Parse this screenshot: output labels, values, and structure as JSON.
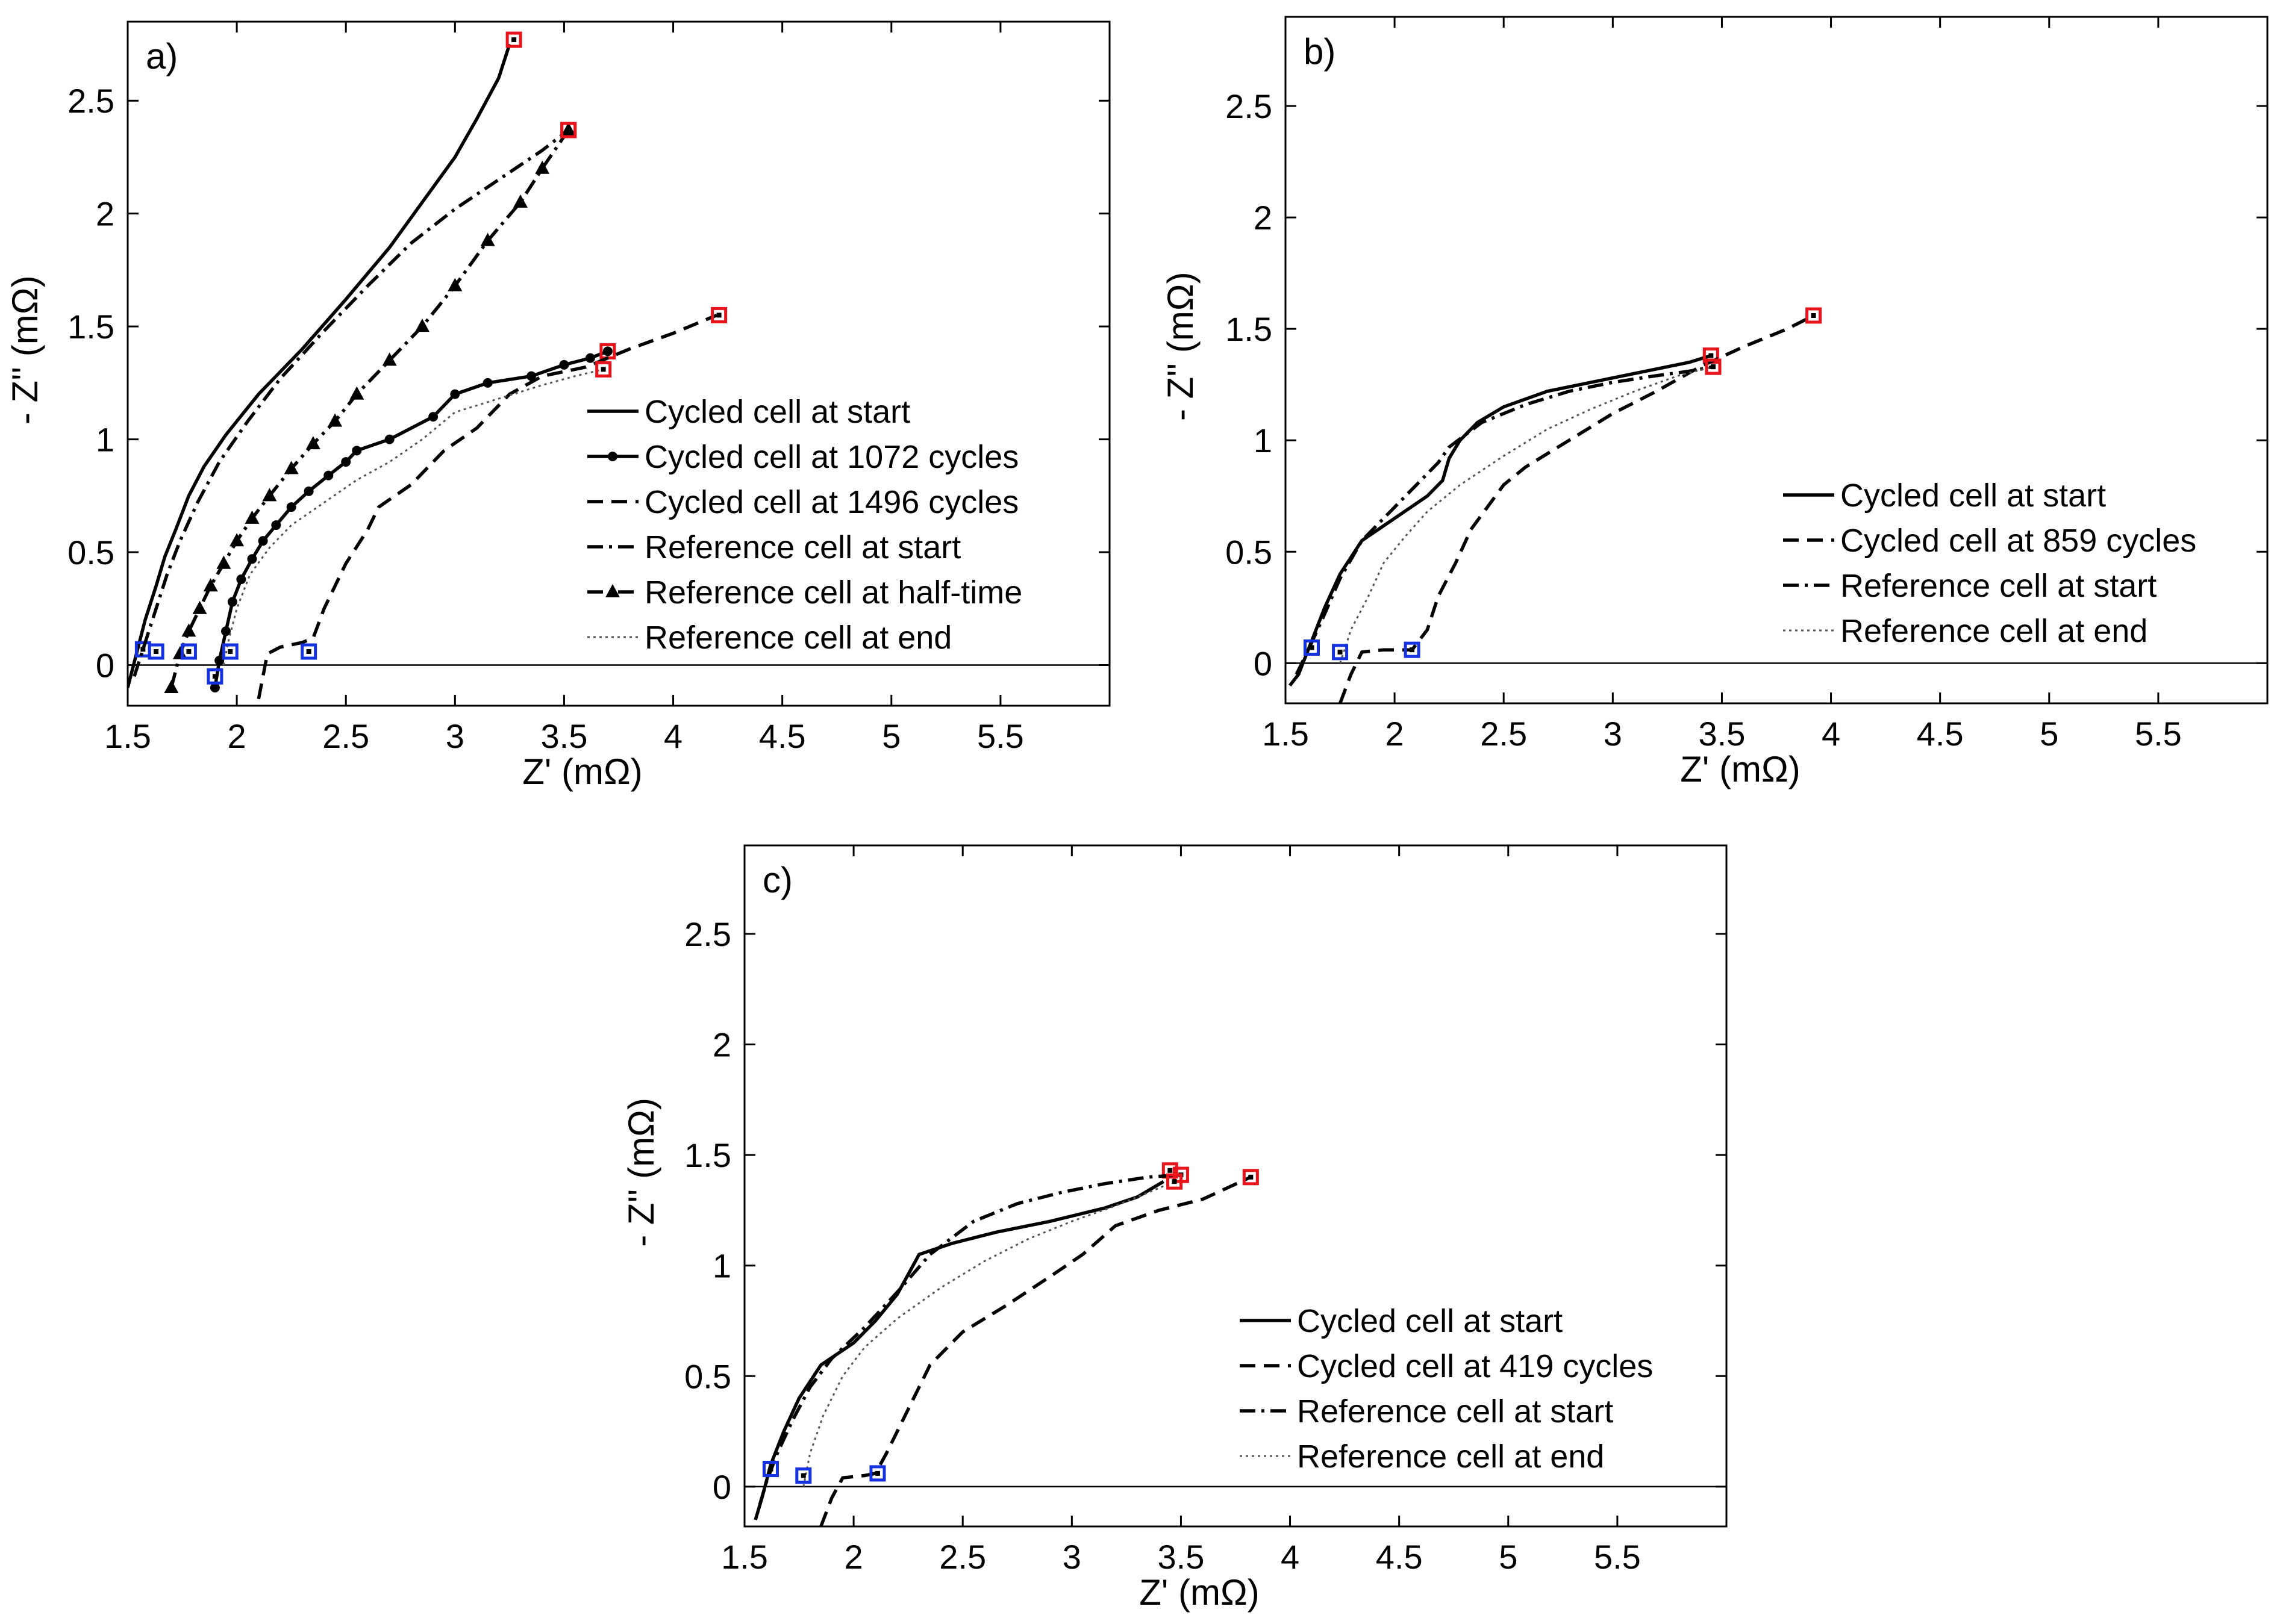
{
  "colors": {
    "low_freq_marker": "#e8141c",
    "high_freq_marker": "#1432e0",
    "line": "#000000"
  },
  "chart_data": [
    {
      "type": "line",
      "panel": "a)",
      "xlabel": "Z' (mΩ)",
      "ylabel": "- Z'' (mΩ)",
      "xlim": [
        1.5,
        6.0
      ],
      "ylim": [
        -0.18,
        2.85
      ],
      "xticks": [
        1.5,
        2,
        2.5,
        3,
        3.5,
        4,
        4.5,
        5,
        5.5
      ],
      "yticks": [
        0,
        0.5,
        1,
        1.5,
        2,
        2.5
      ],
      "series": [
        {
          "name": "Cycled cell at start",
          "style": "solid",
          "marker": "none",
          "x": [
            1.5,
            1.54,
            1.58,
            1.63,
            1.67,
            1.72,
            1.78,
            1.85,
            1.95,
            2.1,
            2.3,
            2.5,
            2.7,
            2.85,
            3.0,
            3.1,
            3.2,
            3.25
          ],
          "y": [
            -0.1,
            0.05,
            0.2,
            0.35,
            0.48,
            0.6,
            0.75,
            0.88,
            1.02,
            1.2,
            1.4,
            1.62,
            1.85,
            2.05,
            2.25,
            2.42,
            2.6,
            2.75
          ],
          "hf": [
            1.57,
            0.07
          ],
          "lf": [
            3.27,
            2.77
          ]
        },
        {
          "name": "Cycled cell at 1072 cycles",
          "style": "solid",
          "marker": "circle",
          "x": [
            1.9,
            1.92,
            1.95,
            1.98,
            2.02,
            2.07,
            2.12,
            2.18,
            2.25,
            2.33,
            2.42,
            2.5,
            2.55,
            2.7,
            2.9,
            3.0,
            3.15,
            3.35,
            3.5,
            3.62,
            3.7
          ],
          "y": [
            -0.1,
            0.02,
            0.15,
            0.28,
            0.38,
            0.47,
            0.55,
            0.62,
            0.7,
            0.77,
            0.84,
            0.9,
            0.95,
            1.0,
            1.1,
            1.2,
            1.25,
            1.28,
            1.33,
            1.36,
            1.39
          ],
          "hf": [
            1.9,
            -0.05
          ],
          "lf": [
            3.7,
            1.39
          ]
        },
        {
          "name": "Cycled cell at 1496 cycles",
          "style": "dashed",
          "marker": "none",
          "x": [
            2.1,
            2.14,
            2.2,
            2.3,
            2.35,
            2.4,
            2.5,
            2.6,
            2.65,
            2.8,
            2.95,
            3.1,
            3.25,
            3.4,
            3.6,
            3.8,
            4.0,
            4.2
          ],
          "y": [
            -0.15,
            0.05,
            0.08,
            0.1,
            0.12,
            0.25,
            0.45,
            0.6,
            0.7,
            0.8,
            0.95,
            1.05,
            1.2,
            1.28,
            1.32,
            1.4,
            1.47,
            1.55
          ],
          "hf": [
            2.33,
            0.06
          ],
          "lf": [
            4.21,
            1.55
          ]
        },
        {
          "name": "Reference cell at start",
          "style": "dashdot",
          "marker": "none",
          "x": [
            1.53,
            1.58,
            1.63,
            1.68,
            1.74,
            1.82,
            1.92,
            2.05,
            2.2,
            2.4,
            2.6,
            2.8,
            3.0,
            3.2,
            3.4,
            3.52
          ],
          "y": [
            -0.05,
            0.1,
            0.25,
            0.4,
            0.55,
            0.72,
            0.9,
            1.08,
            1.27,
            1.48,
            1.68,
            1.87,
            2.02,
            2.15,
            2.28,
            2.37
          ],
          "hf": [
            1.63,
            0.06
          ],
          "lf": [
            3.52,
            2.37
          ]
        },
        {
          "name": "Reference cell at half-time",
          "style": "dashdot",
          "marker": "triangle",
          "x": [
            1.7,
            1.74,
            1.78,
            1.83,
            1.88,
            1.94,
            2.0,
            2.07,
            2.15,
            2.25,
            2.35,
            2.45,
            2.55,
            2.7,
            2.85,
            3.0,
            3.15,
            3.3,
            3.4,
            3.52
          ],
          "y": [
            -0.1,
            0.05,
            0.15,
            0.25,
            0.35,
            0.45,
            0.55,
            0.65,
            0.75,
            0.87,
            0.98,
            1.08,
            1.2,
            1.35,
            1.5,
            1.68,
            1.88,
            2.05,
            2.2,
            2.37
          ],
          "hf": [
            1.78,
            0.06
          ],
          "lf": [
            3.52,
            2.37
          ]
        },
        {
          "name": "Reference cell at end",
          "style": "dotted",
          "marker": "none",
          "x": [
            1.94,
            1.96,
            2.0,
            2.06,
            2.15,
            2.25,
            2.4,
            2.55,
            2.7,
            2.85,
            3.0,
            3.2,
            3.4,
            3.55,
            3.68
          ],
          "y": [
            0.0,
            0.1,
            0.25,
            0.4,
            0.52,
            0.62,
            0.72,
            0.82,
            0.9,
            1.0,
            1.12,
            1.18,
            1.24,
            1.28,
            1.31
          ],
          "hf": [
            1.97,
            0.06
          ],
          "lf": [
            3.68,
            1.31
          ]
        }
      ]
    },
    {
      "type": "line",
      "panel": "b)",
      "xlabel": "Z' (mΩ)",
      "ylabel": "- Z'' (mΩ)",
      "xlim": [
        1.5,
        6.0
      ],
      "ylim": [
        -0.18,
        2.9
      ],
      "xticks": [
        1.5,
        2,
        2.5,
        3,
        3.5,
        4,
        4.5,
        5,
        5.5
      ],
      "yticks": [
        0,
        0.5,
        1,
        1.5,
        2,
        2.5
      ],
      "series": [
        {
          "name": "Cycled cell at start",
          "style": "solid",
          "marker": "none",
          "x": [
            1.52,
            1.56,
            1.62,
            1.68,
            1.75,
            1.85,
            2.0,
            2.15,
            2.22,
            2.25,
            2.3,
            2.38,
            2.5,
            2.7,
            2.95,
            3.2,
            3.35,
            3.45
          ],
          "y": [
            -0.1,
            -0.05,
            0.1,
            0.25,
            0.4,
            0.55,
            0.65,
            0.75,
            0.82,
            0.92,
            1.0,
            1.08,
            1.15,
            1.22,
            1.27,
            1.32,
            1.35,
            1.38
          ],
          "hf": [
            1.62,
            0.07
          ],
          "lf": [
            3.45,
            1.38
          ]
        },
        {
          "name": "Cycled cell at 859 cycles",
          "style": "dashed",
          "marker": "none",
          "x": [
            1.75,
            1.8,
            1.85,
            1.95,
            2.08,
            2.15,
            2.2,
            2.28,
            2.35,
            2.5,
            2.6,
            2.8,
            3.0,
            3.2,
            3.4,
            3.6,
            3.8,
            3.92
          ],
          "y": [
            -0.18,
            -0.05,
            0.05,
            0.06,
            0.06,
            0.15,
            0.3,
            0.45,
            0.6,
            0.8,
            0.88,
            1.0,
            1.12,
            1.22,
            1.33,
            1.42,
            1.5,
            1.56
          ],
          "hf": [
            2.08,
            0.06
          ],
          "lf": [
            3.92,
            1.56
          ]
        },
        {
          "name": "Reference cell at start",
          "style": "dashdot",
          "marker": "none",
          "x": [
            1.55,
            1.6,
            1.67,
            1.75,
            1.85,
            2.0,
            2.1,
            2.2,
            2.25,
            2.4,
            2.6,
            2.8,
            3.0,
            3.2,
            3.35,
            3.46
          ],
          "y": [
            -0.05,
            0.05,
            0.2,
            0.38,
            0.55,
            0.7,
            0.8,
            0.9,
            0.97,
            1.08,
            1.16,
            1.22,
            1.26,
            1.29,
            1.31,
            1.33
          ],
          "hf": [
            1.62,
            0.07
          ],
          "lf": [
            3.46,
            1.33
          ]
        },
        {
          "name": "Reference cell at end",
          "style": "dotted",
          "marker": "none",
          "x": [
            1.75,
            1.8,
            1.88,
            1.95,
            2.05,
            2.15,
            2.3,
            2.5,
            2.7,
            2.9,
            3.1,
            3.3,
            3.46
          ],
          "y": [
            0.0,
            0.15,
            0.3,
            0.45,
            0.57,
            0.68,
            0.8,
            0.93,
            1.05,
            1.14,
            1.22,
            1.29,
            1.33
          ],
          "hf": [
            1.75,
            0.05
          ],
          "lf": [
            3.46,
            1.33
          ]
        }
      ]
    },
    {
      "type": "line",
      "panel": "c)",
      "xlabel": "Z' (mΩ)",
      "ylabel": "- Z'' (mΩ)",
      "xlim": [
        1.5,
        6.0
      ],
      "ylim": [
        -0.18,
        2.9
      ],
      "xticks": [
        1.5,
        2,
        2.5,
        3,
        3.5,
        4,
        4.5,
        5,
        5.5
      ],
      "yticks": [
        0,
        0.5,
        1,
        1.5,
        2,
        2.5
      ],
      "series": [
        {
          "name": "Cycled cell at start",
          "style": "solid",
          "marker": "none",
          "x": [
            1.55,
            1.58,
            1.62,
            1.68,
            1.75,
            1.85,
            2.0,
            2.1,
            2.2,
            2.3,
            2.45,
            2.65,
            2.9,
            3.15,
            3.3,
            3.42
          ],
          "y": [
            -0.15,
            -0.05,
            0.1,
            0.25,
            0.4,
            0.55,
            0.65,
            0.75,
            0.87,
            1.05,
            1.1,
            1.15,
            1.2,
            1.26,
            1.31,
            1.38
          ],
          "hf": [
            1.62,
            0.08
          ],
          "lf": [
            3.45,
            1.43
          ]
        },
        {
          "name": "Cycled cell at 419 cycles",
          "style": "dashed",
          "marker": "none",
          "x": [
            1.85,
            1.9,
            1.95,
            2.05,
            2.1,
            2.15,
            2.25,
            2.35,
            2.5,
            2.7,
            2.9,
            3.05,
            3.2,
            3.4,
            3.6,
            3.82
          ],
          "y": [
            -0.18,
            -0.05,
            0.04,
            0.05,
            0.06,
            0.15,
            0.35,
            0.55,
            0.7,
            0.82,
            0.95,
            1.05,
            1.18,
            1.25,
            1.3,
            1.4
          ],
          "hf": [
            2.11,
            0.06
          ],
          "lf": [
            3.82,
            1.4
          ]
        },
        {
          "name": "Reference cell at start",
          "style": "dashdot",
          "marker": "none",
          "x": [
            1.57,
            1.6,
            1.65,
            1.72,
            1.8,
            1.9,
            2.05,
            2.2,
            2.35,
            2.55,
            2.75,
            2.95,
            3.15,
            3.35,
            3.5
          ],
          "y": [
            -0.08,
            0.02,
            0.15,
            0.3,
            0.45,
            0.58,
            0.72,
            0.88,
            1.05,
            1.2,
            1.28,
            1.33,
            1.37,
            1.4,
            1.41
          ],
          "hf": [
            1.62,
            0.08
          ],
          "lf": [
            3.5,
            1.41
          ]
        },
        {
          "name": "Reference cell at end",
          "style": "dotted",
          "marker": "none",
          "x": [
            1.77,
            1.8,
            1.86,
            1.95,
            2.05,
            2.2,
            2.4,
            2.6,
            2.8,
            3.0,
            3.2,
            3.35,
            3.47
          ],
          "y": [
            0.0,
            0.15,
            0.32,
            0.5,
            0.63,
            0.76,
            0.9,
            1.02,
            1.12,
            1.2,
            1.27,
            1.33,
            1.38
          ],
          "hf": [
            1.77,
            0.05
          ],
          "lf": [
            3.47,
            1.38
          ]
        }
      ]
    }
  ]
}
